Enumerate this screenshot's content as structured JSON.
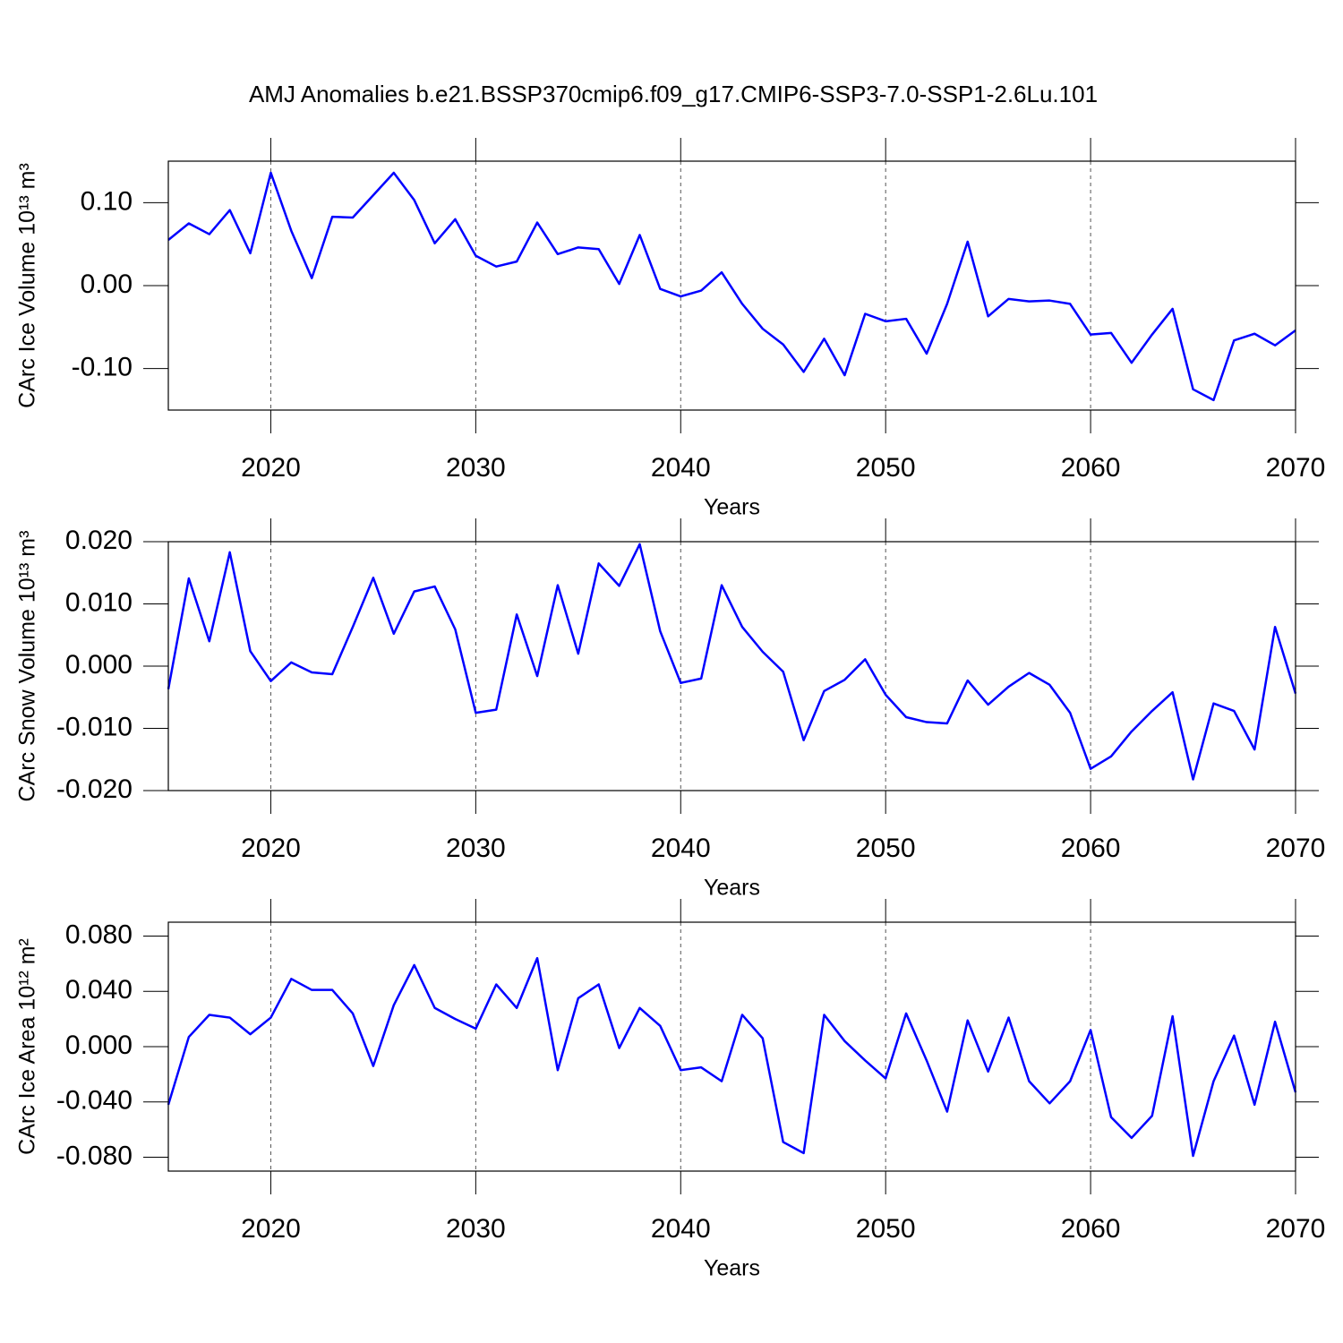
{
  "chart_data": [
    {
      "type": "line",
      "title": "AMJ Anomalies b.e21.BSSP370cmip6.f09_g17.CMIP6-SSP3-7.0-SSP1-2.6Lu.101",
      "ylabel": "CArc Ice Volume 10¹³ m³",
      "xlabel": "Years",
      "color": "#0000ff",
      "grid": true,
      "x": [
        2015,
        2016,
        2017,
        2018,
        2019,
        2020,
        2021,
        2022,
        2023,
        2024,
        2025,
        2026,
        2027,
        2028,
        2029,
        2030,
        2031,
        2032,
        2033,
        2034,
        2035,
        2036,
        2037,
        2038,
        2039,
        2040,
        2041,
        2042,
        2043,
        2044,
        2045,
        2046,
        2047,
        2048,
        2049,
        2050,
        2051,
        2052,
        2053,
        2054,
        2055,
        2056,
        2057,
        2058,
        2059,
        2060,
        2061,
        2062,
        2063,
        2064,
        2065,
        2066,
        2067,
        2068,
        2069,
        2070
      ],
      "values": [
        0.055,
        0.075,
        0.062,
        0.091,
        0.039,
        0.136,
        0.066,
        0.009,
        0.083,
        0.082,
        0.109,
        0.136,
        0.103,
        0.051,
        0.08,
        0.036,
        0.023,
        0.029,
        0.076,
        0.038,
        0.046,
        0.044,
        0.002,
        0.061,
        -0.004,
        -0.013,
        -0.006,
        0.016,
        -0.022,
        -0.052,
        -0.071,
        -0.104,
        -0.064,
        -0.108,
        -0.034,
        -0.043,
        -0.04,
        -0.082,
        -0.022,
        0.053,
        -0.037,
        -0.016,
        -0.019,
        -0.018,
        -0.022,
        -0.059,
        -0.057,
        -0.093,
        -0.059,
        -0.028,
        -0.125,
        -0.138,
        -0.066,
        -0.058,
        -0.072,
        -0.054
      ],
      "xlim": [
        2015,
        2070
      ],
      "xticks": [
        2020,
        2030,
        2040,
        2050,
        2060,
        2070
      ],
      "ylim": [
        -0.15,
        0.15
      ],
      "yticks": [
        {
          "value": -0.1,
          "label": "-0.10"
        },
        {
          "value": 0,
          "label": "0.00"
        },
        {
          "value": 0.1,
          "label": "0.10"
        }
      ]
    },
    {
      "type": "line",
      "ylabel": "CArc Snow Volume 10¹³ m³",
      "xlabel": "Years",
      "color": "#0000ff",
      "grid": true,
      "x": [
        2015,
        2016,
        2017,
        2018,
        2019,
        2020,
        2021,
        2022,
        2023,
        2024,
        2025,
        2026,
        2027,
        2028,
        2029,
        2030,
        2031,
        2032,
        2033,
        2034,
        2035,
        2036,
        2037,
        2038,
        2039,
        2040,
        2041,
        2042,
        2043,
        2044,
        2045,
        2046,
        2047,
        2048,
        2049,
        2050,
        2051,
        2052,
        2053,
        2054,
        2055,
        2056,
        2057,
        2058,
        2059,
        2060,
        2061,
        2062,
        2063,
        2064,
        2065,
        2066,
        2067,
        2068,
        2069,
        2070
      ],
      "values": [
        -0.0037,
        0.0141,
        0.004,
        0.0183,
        0.0024,
        -0.0024,
        0.0006,
        -0.001,
        -0.0013,
        0.0063,
        0.0142,
        0.0052,
        0.012,
        0.0128,
        0.0059,
        -0.0075,
        -0.007,
        0.0083,
        -0.0016,
        0.013,
        0.002,
        0.0165,
        0.0129,
        0.0196,
        0.0056,
        -0.0027,
        -0.002,
        0.013,
        0.0063,
        0.0023,
        -0.0009,
        -0.0119,
        -0.004,
        -0.0022,
        0.0011,
        -0.0046,
        -0.0082,
        -0.009,
        -0.0092,
        -0.0023,
        -0.0062,
        -0.0033,
        -0.0011,
        -0.003,
        -0.0075,
        -0.0165,
        -0.0145,
        -0.0105,
        -0.0072,
        -0.0042,
        -0.0182,
        -0.006,
        -0.0072,
        -0.0134,
        0.0063,
        -0.0044
      ],
      "xlim": [
        2015,
        2070
      ],
      "xticks": [
        2020,
        2030,
        2040,
        2050,
        2060,
        2070
      ],
      "ylim": [
        -0.02,
        0.02
      ],
      "yticks": [
        {
          "value": -0.02,
          "label": "-0.020"
        },
        {
          "value": -0.01,
          "label": "-0.010"
        },
        {
          "value": 0,
          "label": "0.000"
        },
        {
          "value": 0.01,
          "label": "0.010"
        },
        {
          "value": 0.02,
          "label": "0.020"
        }
      ]
    },
    {
      "type": "line",
      "ylabel": "CArc Ice Area 10¹² m²",
      "xlabel": "Years",
      "color": "#0000ff",
      "grid": true,
      "x": [
        2015,
        2016,
        2017,
        2018,
        2019,
        2020,
        2021,
        2022,
        2023,
        2024,
        2025,
        2026,
        2027,
        2028,
        2029,
        2030,
        2031,
        2032,
        2033,
        2034,
        2035,
        2036,
        2037,
        2038,
        2039,
        2040,
        2041,
        2042,
        2043,
        2044,
        2045,
        2046,
        2047,
        2048,
        2049,
        2050,
        2051,
        2052,
        2053,
        2054,
        2055,
        2056,
        2057,
        2058,
        2059,
        2060,
        2061,
        2062,
        2063,
        2064,
        2065,
        2066,
        2067,
        2068,
        2069,
        2070
      ],
      "values": [
        -0.042,
        0.007,
        0.023,
        0.021,
        0.009,
        0.021,
        0.049,
        0.041,
        0.041,
        0.024,
        -0.014,
        0.03,
        0.059,
        0.028,
        0.02,
        0.013,
        0.045,
        0.028,
        0.064,
        -0.017,
        0.035,
        0.045,
        -0.001,
        0.028,
        0.015,
        -0.017,
        -0.015,
        -0.025,
        0.023,
        0.006,
        -0.069,
        -0.077,
        0.023,
        0.004,
        -0.01,
        -0.023,
        0.024,
        -0.01,
        -0.047,
        0.019,
        -0.018,
        0.021,
        -0.025,
        -0.041,
        -0.025,
        0.012,
        -0.051,
        -0.066,
        -0.05,
        0.022,
        -0.079,
        -0.025,
        0.008,
        -0.042,
        0.018,
        -0.033
      ],
      "xlim": [
        2015,
        2070
      ],
      "xticks": [
        2020,
        2030,
        2040,
        2050,
        2060,
        2070
      ],
      "ylim": [
        -0.09,
        0.09
      ],
      "yticks": [
        {
          "value": -0.08,
          "label": "-0.080"
        },
        {
          "value": -0.04,
          "label": "-0.040"
        },
        {
          "value": 0,
          "label": "0.000"
        },
        {
          "value": 0.04,
          "label": "0.040"
        },
        {
          "value": 0.08,
          "label": "0.080"
        }
      ]
    }
  ]
}
